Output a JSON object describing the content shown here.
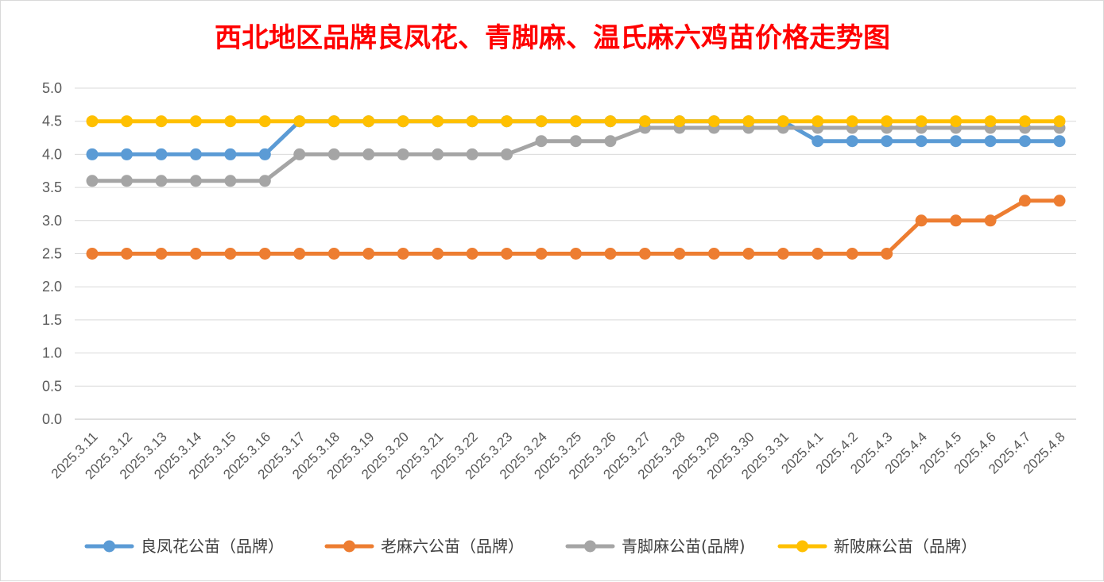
{
  "chart_data": {
    "type": "line",
    "title": "西北地区品牌良凤花、青脚麻、温氏麻六鸡苗价格走势图",
    "xlabel": "",
    "ylabel": "",
    "ylim": [
      0,
      5
    ],
    "yticks": [
      "0.0",
      "0.5",
      "1.0",
      "1.5",
      "2.0",
      "2.5",
      "3.0",
      "3.5",
      "4.0",
      "4.5",
      "5.0"
    ],
    "grid": true,
    "legend_position": "bottom",
    "categories": [
      "2025.3.11",
      "2025.3.12",
      "2025.3.13",
      "2025.3.14",
      "2025.3.15",
      "2025.3.16",
      "2025.3.17",
      "2025.3.18",
      "2025.3.19",
      "2025.3.20",
      "2025.3.21",
      "2025.3.22",
      "2025.3.23",
      "2025.3.24",
      "2025.3.25",
      "2025.3.26",
      "2025.3.27",
      "2025.3.28",
      "2025.3.29",
      "2025.3.30",
      "2025.3.31",
      "2025.4.1",
      "2025.4.2",
      "2025.4.3",
      "2025.4.4",
      "2025.4.5",
      "2025.4.6",
      "2025.4.7",
      "2025.4.8"
    ],
    "series": [
      {
        "name": "良凤花公苗（品牌）",
        "color": "#5b9bd5",
        "values": [
          4.0,
          4.0,
          4.0,
          4.0,
          4.0,
          4.0,
          4.5,
          4.5,
          4.5,
          4.5,
          4.5,
          4.5,
          4.5,
          4.5,
          4.5,
          4.5,
          4.5,
          4.5,
          4.5,
          4.5,
          4.5,
          4.2,
          4.2,
          4.2,
          4.2,
          4.2,
          4.2,
          4.2,
          4.2
        ]
      },
      {
        "name": "老麻六公苗（品牌）",
        "color": "#ed7d31",
        "values": [
          2.5,
          2.5,
          2.5,
          2.5,
          2.5,
          2.5,
          2.5,
          2.5,
          2.5,
          2.5,
          2.5,
          2.5,
          2.5,
          2.5,
          2.5,
          2.5,
          2.5,
          2.5,
          2.5,
          2.5,
          2.5,
          2.5,
          2.5,
          2.5,
          3.0,
          3.0,
          3.0,
          3.3,
          3.3
        ]
      },
      {
        "name": "青脚麻公苗(品牌)",
        "color": "#a5a5a5",
        "values": [
          3.6,
          3.6,
          3.6,
          3.6,
          3.6,
          3.6,
          4.0,
          4.0,
          4.0,
          4.0,
          4.0,
          4.0,
          4.0,
          4.2,
          4.2,
          4.2,
          4.4,
          4.4,
          4.4,
          4.4,
          4.4,
          4.4,
          4.4,
          4.4,
          4.4,
          4.4,
          4.4,
          4.4,
          4.4
        ]
      },
      {
        "name": "新陂麻公苗（品牌）",
        "color": "#ffc000",
        "values": [
          4.5,
          4.5,
          4.5,
          4.5,
          4.5,
          4.5,
          4.5,
          4.5,
          4.5,
          4.5,
          4.5,
          4.5,
          4.5,
          4.5,
          4.5,
          4.5,
          4.5,
          4.5,
          4.5,
          4.5,
          4.5,
          4.5,
          4.5,
          4.5,
          4.5,
          4.5,
          4.5,
          4.5,
          4.5
        ]
      }
    ]
  }
}
